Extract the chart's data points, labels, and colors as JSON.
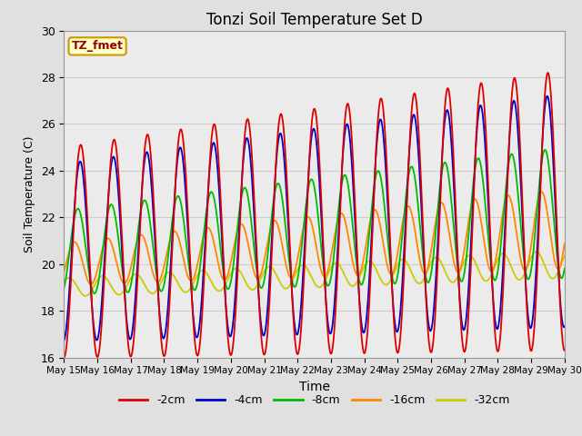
{
  "title": "Tonzi Soil Temperature Set D",
  "xlabel": "Time",
  "ylabel": "Soil Temperature (C)",
  "ylim": [
    16,
    30
  ],
  "annotation_text": "TZ_fmet",
  "annotation_bg": "#ffffcc",
  "annotation_border": "#cc9900",
  "annotation_text_color": "#990000",
  "series_colors": {
    "-2cm": "#dd0000",
    "-4cm": "#0000cc",
    "-8cm": "#00bb00",
    "-16cm": "#ff8800",
    "-32cm": "#cccc00"
  },
  "xtick_labels": [
    "May 15",
    "May 16",
    "May 17",
    "May 18",
    "May 19",
    "May 20",
    "May 21",
    "May 22",
    "May 23",
    "May 24",
    "May 25",
    "May 26",
    "May 27",
    "May 28",
    "May 29",
    "May 30"
  ],
  "grid_color": "#cccccc",
  "bg_color": "#e0e0e0",
  "plot_bg": "#ebebeb",
  "lw": 1.3
}
